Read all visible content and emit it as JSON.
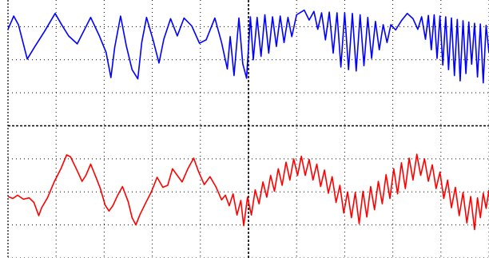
{
  "chart_data": {
    "type": "line",
    "title": "",
    "xlabel": "",
    "ylabel": "",
    "grid": true,
    "legend": "none",
    "x_divisions": 10,
    "y_divisions": 8,
    "xlim": [
      0,
      10
    ],
    "ylim": [
      0,
      8
    ],
    "series": [
      {
        "color": "#0000ff",
        "values": [
          [
            0.0,
            6.92
          ],
          [
            0.12,
            7.32
          ],
          [
            0.22,
            7.05
          ],
          [
            0.4,
            6.02
          ],
          [
            0.56,
            6.4
          ],
          [
            0.76,
            6.86
          ],
          [
            0.98,
            7.4
          ],
          [
            1.12,
            7.05
          ],
          [
            1.26,
            6.72
          ],
          [
            1.44,
            6.48
          ],
          [
            1.58,
            6.88
          ],
          [
            1.72,
            7.28
          ],
          [
            1.9,
            6.72
          ],
          [
            2.04,
            6.22
          ],
          [
            2.14,
            5.46
          ],
          [
            2.22,
            6.38
          ],
          [
            2.34,
            7.32
          ],
          [
            2.46,
            6.42
          ],
          [
            2.58,
            5.7
          ],
          [
            2.7,
            5.42
          ],
          [
            2.78,
            6.52
          ],
          [
            2.88,
            7.28
          ],
          [
            3.02,
            6.58
          ],
          [
            3.14,
            5.9
          ],
          [
            3.24,
            6.62
          ],
          [
            3.38,
            7.24
          ],
          [
            3.52,
            6.72
          ],
          [
            3.66,
            7.26
          ],
          [
            3.82,
            7.02
          ],
          [
            3.98,
            6.5
          ],
          [
            4.12,
            6.6
          ],
          [
            4.3,
            7.26
          ],
          [
            4.44,
            6.52
          ],
          [
            4.56,
            5.72
          ],
          [
            4.62,
            6.7
          ],
          [
            4.7,
            5.52
          ],
          [
            4.8,
            7.26
          ],
          [
            4.88,
            5.88
          ],
          [
            4.96,
            5.44
          ],
          [
            5.04,
            7.3
          ],
          [
            5.1,
            6.0
          ],
          [
            5.18,
            7.28
          ],
          [
            5.26,
            6.1
          ],
          [
            5.34,
            7.36
          ],
          [
            5.42,
            6.2
          ],
          [
            5.5,
            7.3
          ],
          [
            5.58,
            6.4
          ],
          [
            5.66,
            7.32
          ],
          [
            5.74,
            6.52
          ],
          [
            5.82,
            7.28
          ],
          [
            5.9,
            6.7
          ],
          [
            6.0,
            7.36
          ],
          [
            6.16,
            7.5
          ],
          [
            6.26,
            7.2
          ],
          [
            6.36,
            7.46
          ],
          [
            6.44,
            6.92
          ],
          [
            6.52,
            7.42
          ],
          [
            6.6,
            6.6
          ],
          [
            6.68,
            7.44
          ],
          [
            6.76,
            6.2
          ],
          [
            6.84,
            7.42
          ],
          [
            6.92,
            5.78
          ],
          [
            7.0,
            7.42
          ],
          [
            7.08,
            5.7
          ],
          [
            7.16,
            7.4
          ],
          [
            7.24,
            5.66
          ],
          [
            7.32,
            7.36
          ],
          [
            7.4,
            5.82
          ],
          [
            7.48,
            7.28
          ],
          [
            7.56,
            6.04
          ],
          [
            7.64,
            7.16
          ],
          [
            7.72,
            6.3
          ],
          [
            7.8,
            7.06
          ],
          [
            7.88,
            6.52
          ],
          [
            7.96,
            7.06
          ],
          [
            8.06,
            6.9
          ],
          [
            8.18,
            7.18
          ],
          [
            8.3,
            7.4
          ],
          [
            8.42,
            7.24
          ],
          [
            8.52,
            6.92
          ],
          [
            8.6,
            7.3
          ],
          [
            8.68,
            6.62
          ],
          [
            8.74,
            7.34
          ],
          [
            8.8,
            6.3
          ],
          [
            8.86,
            7.36
          ],
          [
            8.92,
            6.04
          ],
          [
            8.98,
            7.32
          ],
          [
            9.04,
            5.84
          ],
          [
            9.1,
            7.3
          ],
          [
            9.16,
            5.7
          ],
          [
            9.22,
            7.26
          ],
          [
            9.28,
            5.52
          ],
          [
            9.34,
            7.22
          ],
          [
            9.4,
            5.36
          ],
          [
            9.46,
            7.18
          ],
          [
            9.52,
            5.58
          ],
          [
            9.58,
            7.14
          ],
          [
            9.64,
            5.86
          ],
          [
            9.7,
            7.1
          ],
          [
            9.76,
            5.48
          ],
          [
            9.82,
            7.08
          ],
          [
            9.88,
            5.3
          ],
          [
            9.94,
            7.04
          ],
          [
            10.0,
            6.2
          ]
        ]
      },
      {
        "color": "#ff0000",
        "values": [
          [
            0.0,
            1.86
          ],
          [
            0.1,
            1.8
          ],
          [
            0.2,
            1.9
          ],
          [
            0.32,
            1.78
          ],
          [
            0.44,
            1.82
          ],
          [
            0.54,
            1.68
          ],
          [
            0.64,
            1.28
          ],
          [
            0.7,
            1.52
          ],
          [
            0.82,
            1.82
          ],
          [
            0.96,
            2.3
          ],
          [
            1.1,
            2.7
          ],
          [
            1.22,
            3.12
          ],
          [
            1.3,
            3.06
          ],
          [
            1.42,
            2.7
          ],
          [
            1.54,
            2.32
          ],
          [
            1.62,
            2.5
          ],
          [
            1.72,
            2.84
          ],
          [
            1.84,
            2.4
          ],
          [
            1.92,
            2.1
          ],
          [
            2.02,
            1.6
          ],
          [
            2.1,
            1.42
          ],
          [
            2.18,
            1.58
          ],
          [
            2.28,
            1.9
          ],
          [
            2.38,
            2.16
          ],
          [
            2.5,
            1.7
          ],
          [
            2.58,
            1.22
          ],
          [
            2.66,
            1.0
          ],
          [
            2.74,
            1.3
          ],
          [
            2.86,
            1.66
          ],
          [
            2.98,
            2.0
          ],
          [
            3.1,
            2.44
          ],
          [
            3.22,
            2.14
          ],
          [
            3.32,
            2.2
          ],
          [
            3.42,
            2.7
          ],
          [
            3.52,
            2.5
          ],
          [
            3.62,
            2.3
          ],
          [
            3.74,
            2.7
          ],
          [
            3.86,
            3.02
          ],
          [
            3.96,
            2.62
          ],
          [
            4.08,
            2.22
          ],
          [
            4.2,
            2.46
          ],
          [
            4.32,
            2.16
          ],
          [
            4.44,
            1.76
          ],
          [
            4.52,
            1.9
          ],
          [
            4.6,
            1.58
          ],
          [
            4.68,
            1.94
          ],
          [
            4.76,
            1.3
          ],
          [
            4.84,
            1.74
          ],
          [
            4.9,
            0.98
          ],
          [
            4.98,
            1.84
          ],
          [
            5.06,
            1.3
          ],
          [
            5.14,
            2.06
          ],
          [
            5.22,
            1.64
          ],
          [
            5.3,
            2.3
          ],
          [
            5.38,
            1.84
          ],
          [
            5.46,
            2.5
          ],
          [
            5.54,
            2.02
          ],
          [
            5.62,
            2.7
          ],
          [
            5.7,
            2.2
          ],
          [
            5.78,
            2.9
          ],
          [
            5.86,
            2.36
          ],
          [
            5.94,
            3.0
          ],
          [
            6.02,
            2.5
          ],
          [
            6.1,
            3.08
          ],
          [
            6.18,
            2.5
          ],
          [
            6.26,
            2.98
          ],
          [
            6.34,
            2.36
          ],
          [
            6.42,
            2.84
          ],
          [
            6.5,
            2.16
          ],
          [
            6.58,
            2.66
          ],
          [
            6.66,
            1.96
          ],
          [
            6.74,
            2.46
          ],
          [
            6.82,
            1.68
          ],
          [
            6.9,
            2.2
          ],
          [
            6.98,
            1.36
          ],
          [
            7.06,
            2.0
          ],
          [
            7.14,
            1.22
          ],
          [
            7.22,
            1.98
          ],
          [
            7.3,
            1.04
          ],
          [
            7.38,
            2.02
          ],
          [
            7.46,
            1.24
          ],
          [
            7.54,
            2.16
          ],
          [
            7.62,
            1.46
          ],
          [
            7.7,
            2.32
          ],
          [
            7.78,
            1.64
          ],
          [
            7.86,
            2.52
          ],
          [
            7.94,
            1.8
          ],
          [
            8.02,
            2.7
          ],
          [
            8.1,
            1.94
          ],
          [
            8.18,
            2.88
          ],
          [
            8.26,
            2.1
          ],
          [
            8.34,
            3.02
          ],
          [
            8.42,
            2.36
          ],
          [
            8.5,
            3.14
          ],
          [
            8.58,
            2.5
          ],
          [
            8.66,
            3.0
          ],
          [
            8.74,
            2.32
          ],
          [
            8.82,
            2.82
          ],
          [
            8.9,
            2.1
          ],
          [
            8.98,
            2.6
          ],
          [
            9.06,
            1.8
          ],
          [
            9.14,
            2.36
          ],
          [
            9.22,
            1.52
          ],
          [
            9.3,
            2.14
          ],
          [
            9.38,
            1.28
          ],
          [
            9.46,
            1.98
          ],
          [
            9.54,
            1.06
          ],
          [
            9.62,
            1.86
          ],
          [
            9.7,
            0.86
          ],
          [
            9.76,
            1.82
          ],
          [
            9.82,
            1.22
          ],
          [
            9.88,
            1.96
          ],
          [
            9.94,
            1.5
          ],
          [
            10.0,
            2.06
          ]
        ]
      }
    ]
  }
}
